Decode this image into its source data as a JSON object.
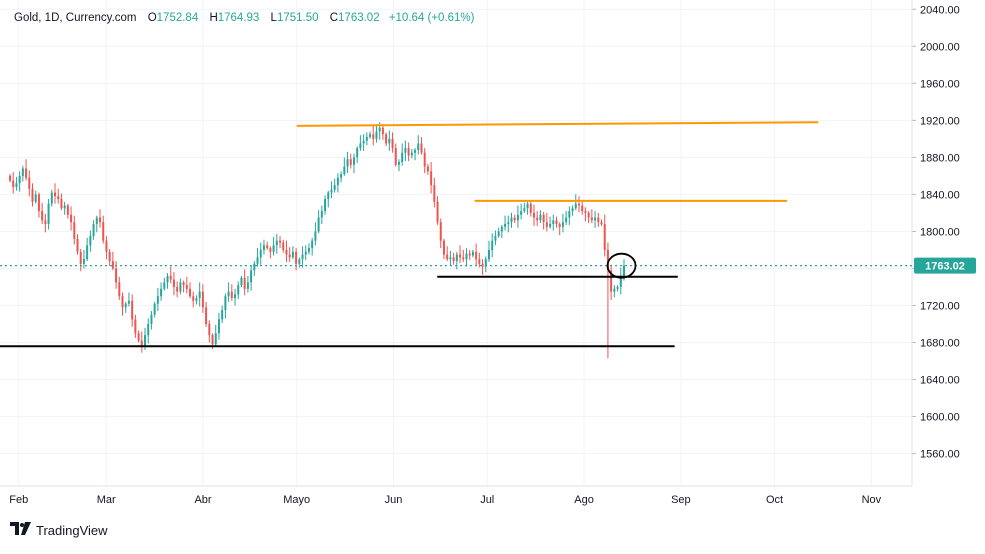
{
  "legend": {
    "symbol": "Gold, 1D, Currency.com",
    "o_label": "O",
    "o_value": "1752.84",
    "h_label": "H",
    "h_value": "1764.93",
    "l_label": "L",
    "l_value": "1751.50",
    "c_label": "C",
    "c_value": "1763.02",
    "change": "+10.64 (+0.61%)"
  },
  "branding": {
    "logo_text": "TradingView",
    "logo_icon": "tradingview-logo-icon"
  },
  "colors": {
    "up": "#26a69a",
    "down": "#ef5350",
    "resistance": "#ff9800",
    "support": "#000000",
    "price_line": "#26a69a",
    "grid": "#f0f3fa"
  },
  "chart_data": {
    "type": "candlestick",
    "y_ticks": [
      "2040.00",
      "2000.00",
      "1960.00",
      "1920.00",
      "1880.00",
      "1840.00",
      "1800.00",
      "1760.00",
      "1720.00",
      "1680.00",
      "1640.00",
      "1600.00",
      "1560.00"
    ],
    "x_ticks": [
      "Feb",
      "Mar",
      "Abr",
      "Mayo",
      "Jun",
      "Jul",
      "Ago",
      "Sep",
      "Oct",
      "Nov"
    ],
    "ylim": [
      1525,
      2050
    ],
    "last_price_label": "1763.02",
    "last_price": 1763.02,
    "grid": true,
    "closes": [
      1855,
      1848,
      1852,
      1860,
      1868,
      1858,
      1846,
      1832,
      1840,
      1822,
      1812,
      1808,
      1830,
      1842,
      1838,
      1835,
      1825,
      1828,
      1818,
      1810,
      1792,
      1778,
      1765,
      1770,
      1785,
      1795,
      1808,
      1815,
      1810,
      1790,
      1778,
      1768,
      1760,
      1745,
      1730,
      1718,
      1722,
      1725,
      1705,
      1690,
      1682,
      1676,
      1688,
      1700,
      1710,
      1722,
      1730,
      1738,
      1745,
      1752,
      1748,
      1740,
      1735,
      1745,
      1742,
      1738,
      1730,
      1725,
      1728,
      1735,
      1718,
      1700,
      1688,
      1678,
      1690,
      1705,
      1715,
      1730,
      1735,
      1728,
      1732,
      1742,
      1750,
      1738,
      1745,
      1758,
      1765,
      1772,
      1780,
      1785,
      1782,
      1778,
      1785,
      1790,
      1788,
      1780,
      1775,
      1772,
      1778,
      1765,
      1770,
      1775,
      1778,
      1782,
      1790,
      1800,
      1815,
      1822,
      1835,
      1842,
      1845,
      1850,
      1858,
      1862,
      1870,
      1878,
      1872,
      1880,
      1890,
      1895,
      1898,
      1902,
      1905,
      1900,
      1908,
      1912,
      1905,
      1895,
      1900,
      1890,
      1872,
      1875,
      1885,
      1890,
      1882,
      1885,
      1888,
      1895,
      1885,
      1870,
      1865,
      1850,
      1832,
      1810,
      1790,
      1775,
      1770,
      1772,
      1768,
      1775,
      1772,
      1770,
      1776,
      1774,
      1778,
      1770,
      1765,
      1762,
      1770,
      1780,
      1790,
      1795,
      1800,
      1805,
      1808,
      1810,
      1815,
      1812,
      1818,
      1822,
      1825,
      1830,
      1820,
      1815,
      1812,
      1818,
      1810,
      1805,
      1808,
      1812,
      1808,
      1805,
      1810,
      1815,
      1822,
      1825,
      1830,
      1828,
      1822,
      1820,
      1815,
      1812,
      1815,
      1810,
      1808,
      1780,
      1758,
      1735,
      1738,
      1740,
      1752,
      1763.02
    ],
    "start_price": 1860,
    "range_start": "2021-01-26",
    "range_end": "2021-11-14",
    "series": [
      {
        "name": "Resistance",
        "color": "#ff9800",
        "x_start": "2021-05-01",
        "y_start": 1914,
        "x_end": "2021-10-15",
        "y_end": 1918
      },
      {
        "name": "Resistance",
        "color": "#ff9800",
        "x_start": "2021-06-27",
        "y_start": 1833,
        "x_end": "2021-10-05",
        "y_end": 1833
      },
      {
        "name": "Support",
        "color": "#000000",
        "x_start": "2021-06-15",
        "y_start": 1751,
        "x_end": "2021-08-31",
        "y_end": 1751
      },
      {
        "name": "Support",
        "color": "#000000",
        "x_start": "2021-01-26",
        "y_start": 1676,
        "x_end": "2021-08-30",
        "y_end": 1676
      }
    ],
    "annotation": {
      "shape": "circle",
      "x": "2021-08-13",
      "y": 1763
    }
  }
}
